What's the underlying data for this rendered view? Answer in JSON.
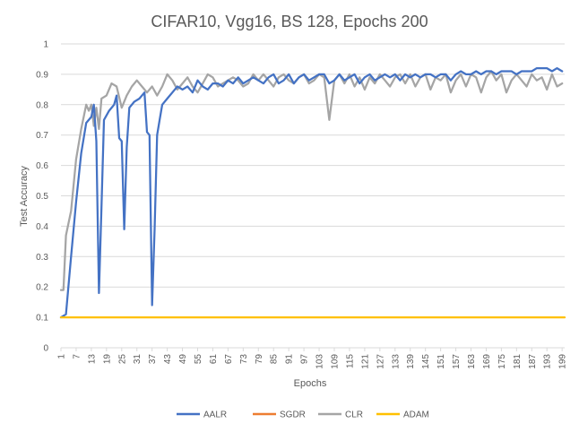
{
  "chart_data": {
    "type": "line",
    "title": "CIFAR10, Vgg16, BS 128, Epochs 200",
    "xlabel": "Epochs",
    "ylabel": "Test Accuracy",
    "xlim": [
      1,
      200
    ],
    "ylim": [
      0,
      1
    ],
    "y_ticks": [
      "0",
      "0.1",
      "0.2",
      "0.3",
      "0.4",
      "0.5",
      "0.6",
      "0.7",
      "0.8",
      "0.9",
      "1"
    ],
    "x_ticks": [
      1,
      7,
      13,
      19,
      25,
      31,
      37,
      43,
      49,
      55,
      61,
      67,
      73,
      79,
      85,
      91,
      97,
      103,
      109,
      115,
      121,
      127,
      133,
      139,
      145,
      151,
      157,
      163,
      169,
      175,
      181,
      187,
      193,
      199
    ],
    "grid": "horizontal",
    "legend_position": "bottom",
    "series": [
      {
        "name": "AALR",
        "color": "#4472C4",
        "points": [
          [
            1,
            0.1
          ],
          [
            3,
            0.11
          ],
          [
            5,
            0.3
          ],
          [
            7,
            0.48
          ],
          [
            9,
            0.64
          ],
          [
            11,
            0.74
          ],
          [
            13,
            0.76
          ],
          [
            14,
            0.8
          ],
          [
            15,
            0.68
          ],
          [
            16,
            0.18
          ],
          [
            17,
            0.46
          ],
          [
            18,
            0.75
          ],
          [
            20,
            0.78
          ],
          [
            22,
            0.8
          ],
          [
            23,
            0.83
          ],
          [
            24,
            0.69
          ],
          [
            25,
            0.68
          ],
          [
            26,
            0.39
          ],
          [
            27,
            0.66
          ],
          [
            28,
            0.79
          ],
          [
            30,
            0.81
          ],
          [
            32,
            0.82
          ],
          [
            34,
            0.84
          ],
          [
            35,
            0.71
          ],
          [
            36,
            0.7
          ],
          [
            37,
            0.14
          ],
          [
            38,
            0.39
          ],
          [
            39,
            0.7
          ],
          [
            40,
            0.75
          ],
          [
            41,
            0.8
          ],
          [
            43,
            0.82
          ],
          [
            45,
            0.84
          ],
          [
            47,
            0.86
          ],
          [
            49,
            0.85
          ],
          [
            51,
            0.86
          ],
          [
            53,
            0.84
          ],
          [
            55,
            0.88
          ],
          [
            57,
            0.86
          ],
          [
            59,
            0.85
          ],
          [
            61,
            0.87
          ],
          [
            63,
            0.87
          ],
          [
            65,
            0.86
          ],
          [
            67,
            0.88
          ],
          [
            69,
            0.87
          ],
          [
            71,
            0.89
          ],
          [
            73,
            0.87
          ],
          [
            75,
            0.88
          ],
          [
            77,
            0.89
          ],
          [
            79,
            0.88
          ],
          [
            81,
            0.87
          ],
          [
            83,
            0.89
          ],
          [
            85,
            0.9
          ],
          [
            87,
            0.87
          ],
          [
            89,
            0.88
          ],
          [
            91,
            0.9
          ],
          [
            93,
            0.87
          ],
          [
            95,
            0.89
          ],
          [
            97,
            0.9
          ],
          [
            99,
            0.88
          ],
          [
            101,
            0.89
          ],
          [
            103,
            0.9
          ],
          [
            105,
            0.9
          ],
          [
            107,
            0.87
          ],
          [
            109,
            0.88
          ],
          [
            111,
            0.9
          ],
          [
            113,
            0.88
          ],
          [
            115,
            0.89
          ],
          [
            117,
            0.9
          ],
          [
            119,
            0.87
          ],
          [
            121,
            0.89
          ],
          [
            123,
            0.9
          ],
          [
            125,
            0.88
          ],
          [
            127,
            0.89
          ],
          [
            129,
            0.9
          ],
          [
            131,
            0.89
          ],
          [
            133,
            0.9
          ],
          [
            135,
            0.88
          ],
          [
            137,
            0.9
          ],
          [
            139,
            0.89
          ],
          [
            141,
            0.9
          ],
          [
            143,
            0.89
          ],
          [
            145,
            0.9
          ],
          [
            147,
            0.9
          ],
          [
            149,
            0.89
          ],
          [
            151,
            0.9
          ],
          [
            153,
            0.9
          ],
          [
            155,
            0.88
          ],
          [
            157,
            0.9
          ],
          [
            159,
            0.91
          ],
          [
            161,
            0.9
          ],
          [
            163,
            0.9
          ],
          [
            165,
            0.91
          ],
          [
            167,
            0.9
          ],
          [
            169,
            0.91
          ],
          [
            171,
            0.91
          ],
          [
            173,
            0.9
          ],
          [
            175,
            0.91
          ],
          [
            177,
            0.91
          ],
          [
            179,
            0.91
          ],
          [
            181,
            0.9
          ],
          [
            183,
            0.91
          ],
          [
            185,
            0.91
          ],
          [
            187,
            0.91
          ],
          [
            189,
            0.92
          ],
          [
            191,
            0.92
          ],
          [
            193,
            0.92
          ],
          [
            195,
            0.91
          ],
          [
            197,
            0.92
          ],
          [
            199,
            0.91
          ]
        ]
      },
      {
        "name": "SGDR",
        "color": "#ED7D31",
        "points": []
      },
      {
        "name": "CLR",
        "color": "#A5A5A5",
        "points": [
          [
            1,
            0.19
          ],
          [
            2,
            0.19
          ],
          [
            3,
            0.37
          ],
          [
            5,
            0.45
          ],
          [
            7,
            0.62
          ],
          [
            9,
            0.72
          ],
          [
            11,
            0.8
          ],
          [
            12,
            0.78
          ],
          [
            13,
            0.8
          ],
          [
            14,
            0.73
          ],
          [
            15,
            0.79
          ],
          [
            16,
            0.72
          ],
          [
            17,
            0.82
          ],
          [
            19,
            0.83
          ],
          [
            21,
            0.87
          ],
          [
            23,
            0.86
          ],
          [
            25,
            0.79
          ],
          [
            27,
            0.83
          ],
          [
            29,
            0.86
          ],
          [
            31,
            0.88
          ],
          [
            33,
            0.86
          ],
          [
            35,
            0.84
          ],
          [
            37,
            0.86
          ],
          [
            39,
            0.83
          ],
          [
            41,
            0.86
          ],
          [
            43,
            0.9
          ],
          [
            45,
            0.88
          ],
          [
            47,
            0.85
          ],
          [
            49,
            0.87
          ],
          [
            51,
            0.89
          ],
          [
            53,
            0.86
          ],
          [
            55,
            0.84
          ],
          [
            57,
            0.87
          ],
          [
            59,
            0.9
          ],
          [
            61,
            0.89
          ],
          [
            63,
            0.86
          ],
          [
            65,
            0.87
          ],
          [
            67,
            0.88
          ],
          [
            69,
            0.89
          ],
          [
            71,
            0.88
          ],
          [
            73,
            0.86
          ],
          [
            75,
            0.87
          ],
          [
            77,
            0.9
          ],
          [
            79,
            0.88
          ],
          [
            81,
            0.9
          ],
          [
            83,
            0.88
          ],
          [
            85,
            0.86
          ],
          [
            87,
            0.89
          ],
          [
            89,
            0.9
          ],
          [
            91,
            0.88
          ],
          [
            93,
            0.87
          ],
          [
            95,
            0.89
          ],
          [
            97,
            0.9
          ],
          [
            99,
            0.87
          ],
          [
            101,
            0.88
          ],
          [
            103,
            0.9
          ],
          [
            105,
            0.89
          ],
          [
            107,
            0.75
          ],
          [
            109,
            0.88
          ],
          [
            111,
            0.9
          ],
          [
            113,
            0.87
          ],
          [
            115,
            0.9
          ],
          [
            117,
            0.86
          ],
          [
            119,
            0.89
          ],
          [
            121,
            0.85
          ],
          [
            123,
            0.89
          ],
          [
            125,
            0.87
          ],
          [
            127,
            0.9
          ],
          [
            129,
            0.88
          ],
          [
            131,
            0.86
          ],
          [
            133,
            0.89
          ],
          [
            135,
            0.9
          ],
          [
            137,
            0.87
          ],
          [
            139,
            0.9
          ],
          [
            141,
            0.86
          ],
          [
            143,
            0.89
          ],
          [
            145,
            0.9
          ],
          [
            147,
            0.85
          ],
          [
            149,
            0.89
          ],
          [
            151,
            0.88
          ],
          [
            153,
            0.9
          ],
          [
            155,
            0.84
          ],
          [
            157,
            0.88
          ],
          [
            159,
            0.9
          ],
          [
            161,
            0.86
          ],
          [
            163,
            0.9
          ],
          [
            165,
            0.89
          ],
          [
            167,
            0.84
          ],
          [
            169,
            0.89
          ],
          [
            171,
            0.91
          ],
          [
            173,
            0.88
          ],
          [
            175,
            0.9
          ],
          [
            177,
            0.84
          ],
          [
            179,
            0.88
          ],
          [
            181,
            0.9
          ],
          [
            183,
            0.88
          ],
          [
            185,
            0.86
          ],
          [
            187,
            0.9
          ],
          [
            189,
            0.88
          ],
          [
            191,
            0.89
          ],
          [
            193,
            0.85
          ],
          [
            195,
            0.9
          ],
          [
            197,
            0.86
          ],
          [
            199,
            0.87
          ]
        ]
      },
      {
        "name": "ADAM",
        "color": "#FFC000",
        "points": [
          [
            1,
            0.1
          ],
          [
            200,
            0.1
          ]
        ]
      }
    ]
  }
}
